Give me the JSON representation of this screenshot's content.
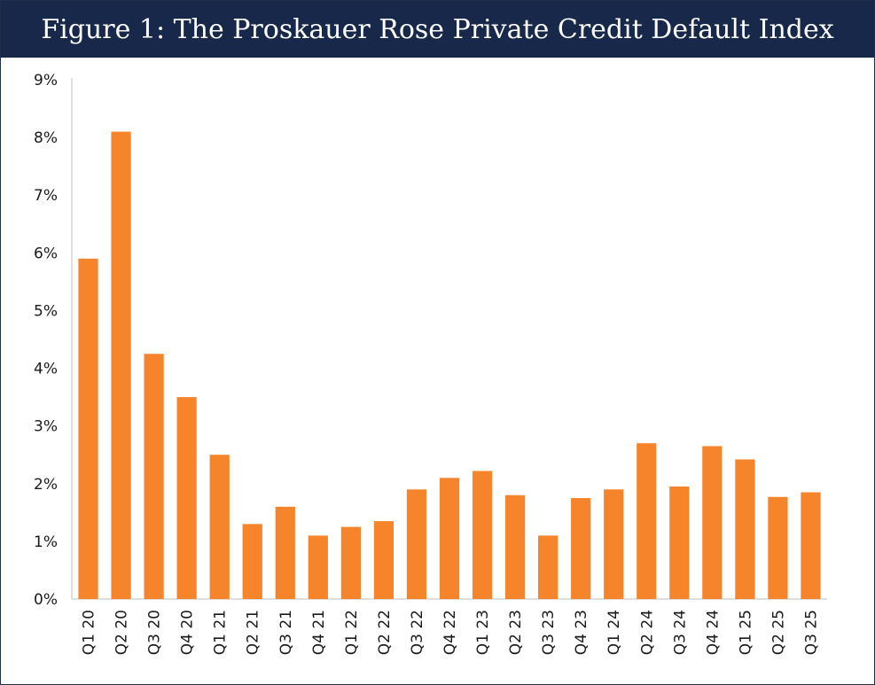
{
  "header": {
    "title": "Figure 1: The Proskauer Rose Private Credit Default Index"
  },
  "colors": {
    "title_bar": "#18284a",
    "bar": "#f5842b",
    "axis": "#bfbfbf"
  },
  "chart_data": {
    "type": "bar",
    "title": "Figure 1: The Proskauer Rose Private Credit Default Index",
    "xlabel": "",
    "ylabel": "",
    "ylim": [
      0,
      9
    ],
    "y_unit": "%",
    "y_ticks": [
      "0%",
      "1%",
      "2%",
      "3%",
      "4%",
      "5%",
      "6%",
      "7%",
      "8%",
      "9%"
    ],
    "grid": false,
    "legend": "none",
    "categories": [
      "Q1 20",
      "Q2 20",
      "Q3 20",
      "Q4 20",
      "Q1 21",
      "Q2 21",
      "Q3 21",
      "Q4 21",
      "Q1 22",
      "Q2 22",
      "Q3 22",
      "Q4 22",
      "Q1 23",
      "Q2 23",
      "Q3 23",
      "Q4 23",
      "Q1 24",
      "Q2 24",
      "Q3 24",
      "Q4 24",
      "Q1 25",
      "Q2 25",
      "Q3 25"
    ],
    "values": [
      5.9,
      8.1,
      4.25,
      3.5,
      2.5,
      1.3,
      1.6,
      1.1,
      1.25,
      1.35,
      1.9,
      2.1,
      2.22,
      1.8,
      1.1,
      1.75,
      1.9,
      2.7,
      1.95,
      2.65,
      2.42,
      1.77,
      1.85
    ]
  }
}
